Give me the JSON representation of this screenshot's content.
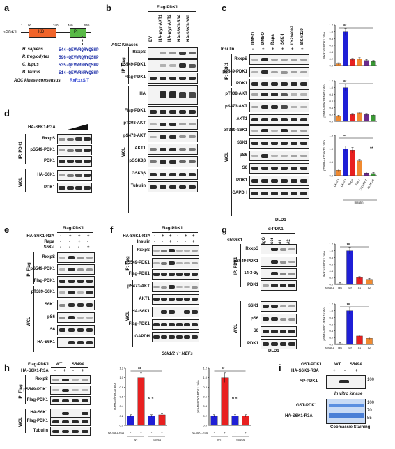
{
  "panels": {
    "a": {
      "letter": "a",
      "protein": "hPDK1",
      "positions": [
        "1",
        "90",
        "340",
        "460",
        "556"
      ],
      "kd_label": "KD",
      "ph_label": "PH",
      "species": [
        {
          "name": "H. sapiens",
          "seq": "544-QEVWRQRYQSHP"
        },
        {
          "name": "P. troglodytes",
          "seq": "596-QEVWRQRYQSHP"
        },
        {
          "name": "C. lupus",
          "seq": "535-QEVWRHRYQSHP"
        },
        {
          "name": "B. taurus",
          "seq": "514-QEVWRHRYQSHP"
        }
      ],
      "consensus_label": "AGC kinase consensus",
      "consensus_seq": "RxRxxS/T"
    },
    "b": {
      "letter": "b",
      "header": "Flag-PDK1",
      "row_title": "AGC Kinases",
      "lanes": [
        "EV",
        "HA-myr-AKT1",
        "HA-myr-AKT2",
        "HA-S6K1-R3A",
        "HA-S6K1-Δ80"
      ],
      "ip_label": "IP: Flag",
      "wcl_label": "WCL",
      "rows": [
        "RxxpS",
        "pS549-PDK1",
        "Flag-PDK1",
        "HA",
        "Flag-PDK1",
        "pT308-AKT",
        "pS473-AKT",
        "AKT1",
        "pGSK3β",
        "GSK3β",
        "Tubulin"
      ]
    },
    "c": {
      "letter": "c",
      "insulin_label": "Insulin",
      "lanes": [
        "DMSO",
        "DMSO",
        "Rapa",
        "S6K-I",
        "LY294002",
        "BKM120"
      ],
      "insulin_signs": [
        "-",
        "+",
        "+",
        "+",
        "+",
        "+"
      ],
      "ip_label": "IP: PDK1",
      "wcl_label": "WCL",
      "rows": [
        "RxxpS",
        "pS549-PDK1",
        "PDK1",
        "pT308-AKT",
        "pS473-AKT",
        "AKT1",
        "pT389-S6K1",
        "S6K1",
        "pS6",
        "S6",
        "PDK1",
        "GAPDH"
      ],
      "cell_line": "DLD1",
      "charts": [
        {
          "ylabel": "RxRxxS/PDK1 ratio",
          "ylim": [
            0,
            1.2
          ],
          "ticks": [
            "0.0",
            "0.2",
            "0.4",
            "0.6",
            "0.8",
            "1.0",
            "1.2"
          ],
          "values": [
            0.05,
            1.0,
            0.18,
            0.2,
            0.15,
            0.12
          ],
          "sig": "**"
        },
        {
          "ylabel": "pS549-PDK1/PDK1 ratio",
          "ylim": [
            0,
            1.2
          ],
          "ticks": [
            "0.0",
            "0.2",
            "0.4",
            "0.6",
            "0.8",
            "1.0",
            "1.2"
          ],
          "values": [
            0.15,
            1.0,
            0.2,
            0.25,
            0.2,
            0.18
          ],
          "sig": "**"
        },
        {
          "ylabel": "pT308-AKT/AKT1 ratio",
          "ylim": [
            0,
            1.5
          ],
          "ticks": [
            "0.0",
            "0.5",
            "1.0",
            "1.5"
          ],
          "values": [
            0.2,
            1.0,
            0.95,
            0.55,
            0.1,
            0.08
          ],
          "sig": "**",
          "sig2": "**"
        }
      ],
      "x_categories": [
        "DMSO",
        "DMSO",
        "Rapa",
        "S6K-I",
        "LY294002",
        "BKM120"
      ],
      "x_group_label": "Insulin"
    },
    "d": {
      "letter": "d",
      "header": "HA-S6K1-R3A",
      "ip_label": "IP: PDK1",
      "wcl_label": "WCL",
      "rows": [
        "RxxpS",
        "pS549-PDK1",
        "PDK1",
        "HA-S6K1",
        "PDK1"
      ]
    },
    "e": {
      "letter": "e",
      "header": "Flag-PDK1",
      "treatments": [
        {
          "name": "HA-S6K1-R3A",
          "signs": [
            "-",
            "+",
            "+",
            "+"
          ]
        },
        {
          "name": "Rapa",
          "signs": [
            "-",
            "-",
            "+",
            "-"
          ]
        },
        {
          "name": "S6K-I",
          "signs": [
            "-",
            "-",
            "-",
            "+"
          ]
        }
      ],
      "ip_label": "IP: Flag",
      "wcl_label": "WCL",
      "rows": [
        "RxxpS",
        "pS549-PDK1",
        "Flag-PDK1",
        "pT389-S6K1",
        "S6K1",
        "pS6",
        "S6",
        "HA-S6K1"
      ]
    },
    "f": {
      "letter": "f",
      "header": "Flag-PDK1",
      "treatments": [
        {
          "name": "HA-S6K1-R3A",
          "signs": [
            "-",
            "+",
            "+",
            "-",
            "+",
            "+"
          ]
        },
        {
          "name": "Insulin",
          "signs": [
            "-",
            "-",
            "+",
            "-",
            "-",
            "+"
          ]
        }
      ],
      "ip_label": "IP: Flag",
      "wcl_label": "WCL",
      "rows": [
        "RxxpS",
        "pS549-PDK1",
        "Flag-PDK1",
        "pS473-AKT",
        "AKT1",
        "HA-S6K1",
        "Flag-PDK1",
        "GAPDH"
      ],
      "cell_line": "S6k1/2⁻/⁻ MEFs"
    },
    "g": {
      "letter": "g",
      "header": "α-PDK1",
      "shrow_label": "shS6K1",
      "lanes": [
        "IgG",
        "scr",
        "#1",
        "#2"
      ],
      "ip_label": "IP: PDK1",
      "wcl_label": "WCL",
      "rows": [
        "RxxpS",
        "pS549-PDK1",
        "14-3-3γ",
        "PDK1",
        "S6K1",
        "pS6",
        "S6",
        "PDK1"
      ],
      "cell_line": "DLD1",
      "charts": [
        {
          "ylabel": "RxRxxS/PDK1 ratio",
          "ylim": [
            0,
            1.2
          ],
          "ticks": [
            "0.0",
            "0.2",
            "0.4",
            "0.6",
            "0.8",
            "1.0",
            "1.2"
          ],
          "values": [
            0.02,
            1.0,
            0.2,
            0.15
          ],
          "sig": "**"
        },
        {
          "ylabel": "pS549-PDK1/PDK1 ratio",
          "ylim": [
            0,
            1.2
          ],
          "ticks": [
            "0.0",
            "0.2",
            "0.4",
            "0.6",
            "0.8",
            "1.0",
            "1.2"
          ],
          "values": [
            0.02,
            1.0,
            0.25,
            0.18
          ],
          "sig": "**"
        }
      ],
      "x_row_label": "shS6K1",
      "x_categories": [
        "IgG",
        "Scr",
        "#1",
        "#2"
      ]
    },
    "h": {
      "letter": "h",
      "flag_label": "Flag-PDK1",
      "wt_label": "WT",
      "mut_label": "S549A",
      "ha_label": "HA-S6K1-R3A",
      "ha_signs": [
        "-",
        "+",
        "-",
        "+"
      ],
      "ip_label": "IP: Flag",
      "wcl_label": "WCL",
      "rows": [
        "RxxpS",
        "pS549-PDK1",
        "Flag-PDK1",
        "HA-S6K1",
        "Flag-PDK1",
        "Tubulin"
      ],
      "charts": [
        {
          "ylabel": "RxRxxS/PDK1 ratio",
          "ylim": [
            0,
            1.2
          ],
          "ticks": [
            "0.0",
            "0.2",
            "0.4",
            "0.6",
            "0.8",
            "1.0",
            "1.2"
          ],
          "values": [
            0.2,
            1.0,
            0.2,
            0.22
          ],
          "sig": "**",
          "ns": "N.S."
        },
        {
          "ylabel": "pS549-PDK1/PDK1 ratio",
          "ylim": [
            0,
            1.2
          ],
          "ticks": [
            "0.0",
            "0.2",
            "0.4",
            "0.6",
            "0.8",
            "1.0",
            "1.2"
          ],
          "values": [
            0.2,
            1.0,
            0.2,
            0.2
          ],
          "sig": "**",
          "ns": "N.S."
        }
      ],
      "x_row_label": "HA-S6K1-R3A",
      "x_signs": [
        "-",
        "+",
        "-",
        "+"
      ],
      "x_groups": [
        "WT",
        "S549A"
      ]
    },
    "i": {
      "letter": "i",
      "gst_label": "GST-PDK1",
      "wt_label": "WT",
      "mut_label": "S549A",
      "ha_label": "HA-S6K1-R3A",
      "ha_signs": [
        "+",
        "-",
        "+"
      ],
      "radio_label": "³²P-PDK1",
      "vitro_label": "In vitro kinase",
      "coom_rows": [
        "GST-PDK1",
        "HA-S6K1-R3A"
      ],
      "coom_label": "Coomassie Staining",
      "mw": [
        "100",
        "100",
        "70",
        "55"
      ]
    }
  },
  "colors": {
    "kd": "#f0642a",
    "ph": "#59b947",
    "red_residue": "#e8231f",
    "blue_residue": "#2a3fd1",
    "bar_orange": "#f08a30",
    "bar_blue": "#1f1fd6",
    "bar_red": "#e82020",
    "bar_purple": "#6b2a8c",
    "bar_green": "#3a9a35",
    "bar_brown": "#8a5a2a",
    "coomassie": "#5b8fe0"
  }
}
